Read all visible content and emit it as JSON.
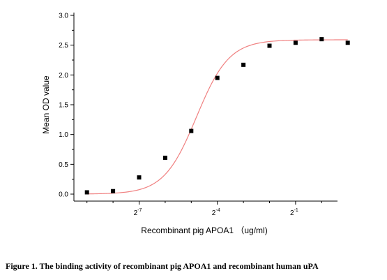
{
  "caption": "Figure 1. The binding activity of recombinant pig APOA1 and recombinant human uPA",
  "chart_data": {
    "type": "scatter",
    "xlabel": "Recombinant pig APOA1 （ug/ml)",
    "ylabel": "Mean OD value",
    "x_scale": "log2",
    "xlim": [
      -9.5,
      0.5
    ],
    "ylim": [
      0,
      3.0
    ],
    "y_ticks": [
      "0.0",
      "0.5",
      "1.0",
      "1.5",
      "2.0",
      "2.5",
      "3.0"
    ],
    "x_tick_labels": [
      {
        "base": "2",
        "exp": "-7",
        "x": -7
      },
      {
        "base": "2",
        "exp": "-4",
        "x": -4
      },
      {
        "base": "2",
        "exp": "-1",
        "x": -1
      }
    ],
    "points": {
      "x": [
        -9,
        -8,
        -7,
        -6,
        -5,
        -4,
        -3,
        -2,
        -1,
        0,
        1
      ],
      "y": [
        0.03,
        0.05,
        0.28,
        0.61,
        1.06,
        1.95,
        2.17,
        2.49,
        2.54,
        2.6,
        2.54
      ]
    },
    "fit": {
      "type": "sigmoid",
      "bottom": 0.0,
      "top": 2.59,
      "x50": -4.8,
      "slope": 1.6
    },
    "colors": {
      "marker": "#000000",
      "fit_line": "#f08080"
    },
    "grid": false,
    "legend": "none"
  }
}
